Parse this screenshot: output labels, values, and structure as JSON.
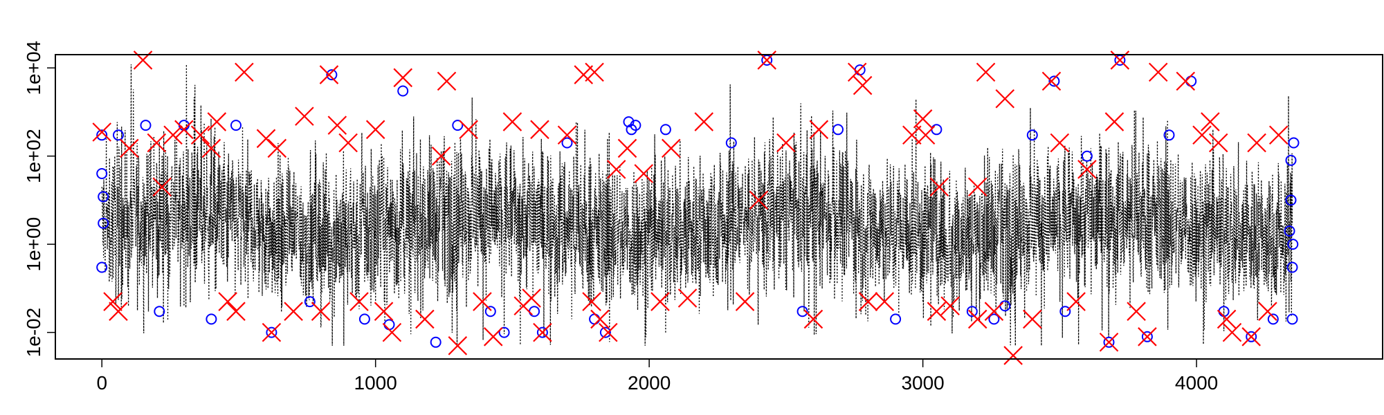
{
  "chart_data": {
    "type": "line",
    "title": "",
    "xlabel": "",
    "ylabel": "",
    "y_scale": "log10",
    "xlim": [
      -170,
      4680
    ],
    "ylim": [
      0.0025,
      20000
    ],
    "x_ticks": [
      0,
      1000,
      2000,
      3000,
      4000
    ],
    "x_tick_labels": [
      "0",
      "1000",
      "2000",
      "3000",
      "4000"
    ],
    "y_ticks": [
      0.01,
      1,
      100,
      10000
    ],
    "y_tick_labels": [
      "1e-02",
      "1e+00",
      "1e+02",
      "1e+04"
    ],
    "grid": false,
    "legend": "none",
    "series": [
      {
        "style": "dotted-line",
        "color": "#000000",
        "x_range": [
          0,
          4350
        ],
        "n_points": 4351,
        "typical_band": [
          0.1,
          50
        ],
        "envelope": [
          0.005,
          12000
        ]
      },
      {
        "style": "circle-markers",
        "color": "#0000ff",
        "points": [
          [
            0,
            300
          ],
          [
            0,
            40
          ],
          [
            5,
            3
          ],
          [
            0,
            0.3
          ],
          [
            5,
            12
          ],
          [
            60,
            300
          ],
          [
            160,
            500
          ],
          [
            210,
            0.03
          ],
          [
            300,
            500
          ],
          [
            400,
            0.02
          ],
          [
            490,
            500
          ],
          [
            620,
            0.01
          ],
          [
            760,
            0.05
          ],
          [
            840,
            7000
          ],
          [
            960,
            0.02
          ],
          [
            1050,
            0.015
          ],
          [
            1100,
            3000
          ],
          [
            1220,
            0.006
          ],
          [
            1300,
            500
          ],
          [
            1420,
            0.03
          ],
          [
            1470,
            0.01
          ],
          [
            1580,
            0.03
          ],
          [
            1610,
            0.01
          ],
          [
            1700,
            200
          ],
          [
            1800,
            0.02
          ],
          [
            1840,
            0.01
          ],
          [
            1925,
            600
          ],
          [
            1935,
            400
          ],
          [
            1950,
            500
          ],
          [
            2060,
            400
          ],
          [
            2300,
            200
          ],
          [
            2430,
            15000
          ],
          [
            2560,
            0.03
          ],
          [
            2690,
            400
          ],
          [
            2770,
            9000
          ],
          [
            2900,
            0.02
          ],
          [
            3050,
            400
          ],
          [
            3180,
            0.03
          ],
          [
            3260,
            0.02
          ],
          [
            3300,
            0.04
          ],
          [
            3400,
            300
          ],
          [
            3480,
            5000
          ],
          [
            3520,
            0.03
          ],
          [
            3600,
            100
          ],
          [
            3680,
            0.006
          ],
          [
            3720,
            15000
          ],
          [
            3820,
            0.008
          ],
          [
            3900,
            300
          ],
          [
            3980,
            5000
          ],
          [
            4100,
            0.03
          ],
          [
            4200,
            0.008
          ],
          [
            4280,
            0.02
          ],
          [
            4340,
            2
          ],
          [
            4345,
            10
          ],
          [
            4350,
            0.02
          ],
          [
            4350,
            0.3
          ],
          [
            4355,
            200
          ],
          [
            4345,
            80
          ],
          [
            4352,
            1
          ]
        ]
      },
      {
        "style": "x-markers",
        "color": "#ff0000",
        "points": [
          [
            0,
            350
          ],
          [
            40,
            0.05
          ],
          [
            60,
            0.03
          ],
          [
            100,
            150
          ],
          [
            150,
            15000
          ],
          [
            200,
            200
          ],
          [
            220,
            20
          ],
          [
            260,
            300
          ],
          [
            300,
            400
          ],
          [
            360,
            300
          ],
          [
            400,
            150
          ],
          [
            420,
            600
          ],
          [
            460,
            0.05
          ],
          [
            490,
            0.03
          ],
          [
            520,
            8000
          ],
          [
            600,
            250
          ],
          [
            620,
            0.01
          ],
          [
            640,
            150
          ],
          [
            700,
            0.03
          ],
          [
            740,
            800
          ],
          [
            800,
            0.03
          ],
          [
            830,
            7000
          ],
          [
            860,
            500
          ],
          [
            900,
            200
          ],
          [
            940,
            0.05
          ],
          [
            1000,
            400
          ],
          [
            1030,
            0.03
          ],
          [
            1060,
            0.01
          ],
          [
            1100,
            6000
          ],
          [
            1180,
            0.02
          ],
          [
            1240,
            100
          ],
          [
            1260,
            5000
          ],
          [
            1300,
            0.005
          ],
          [
            1340,
            400
          ],
          [
            1390,
            0.05
          ],
          [
            1430,
            0.008
          ],
          [
            1500,
            600
          ],
          [
            1540,
            0.04
          ],
          [
            1570,
            0.06
          ],
          [
            1600,
            400
          ],
          [
            1610,
            0.01
          ],
          [
            1700,
            300
          ],
          [
            1760,
            7000
          ],
          [
            1790,
            0.05
          ],
          [
            1800,
            8000
          ],
          [
            1820,
            0.02
          ],
          [
            1850,
            0.01
          ],
          [
            1880,
            50
          ],
          [
            1920,
            150
          ],
          [
            1980,
            40
          ],
          [
            2040,
            0.05
          ],
          [
            2080,
            150
          ],
          [
            2140,
            0.06
          ],
          [
            2200,
            600
          ],
          [
            2350,
            0.05
          ],
          [
            2430,
            15000
          ],
          [
            2400,
            10
          ],
          [
            2500,
            200
          ],
          [
            2600,
            0.02
          ],
          [
            2620,
            400
          ],
          [
            2760,
            8000
          ],
          [
            2780,
            4000
          ],
          [
            2800,
            0.05
          ],
          [
            2860,
            0.05
          ],
          [
            2960,
            300
          ],
          [
            3000,
            700
          ],
          [
            3010,
            300
          ],
          [
            3050,
            0.03
          ],
          [
            3060,
            20
          ],
          [
            3100,
            0.04
          ],
          [
            3200,
            0.02
          ],
          [
            3200,
            20
          ],
          [
            3230,
            8000
          ],
          [
            3260,
            0.03
          ],
          [
            3300,
            2000
          ],
          [
            3330,
            0.003
          ],
          [
            3400,
            0.02
          ],
          [
            3470,
            5000
          ],
          [
            3500,
            200
          ],
          [
            3560,
            0.05
          ],
          [
            3600,
            50
          ],
          [
            3680,
            0.006
          ],
          [
            3700,
            600
          ],
          [
            3720,
            15000
          ],
          [
            3780,
            0.03
          ],
          [
            3820,
            0.008
          ],
          [
            3860,
            8000
          ],
          [
            3960,
            5000
          ],
          [
            4020,
            300
          ],
          [
            4050,
            600
          ],
          [
            4080,
            200
          ],
          [
            4110,
            0.02
          ],
          [
            4130,
            0.01
          ],
          [
            4200,
            0.008
          ],
          [
            4220,
            200
          ],
          [
            4260,
            0.03
          ],
          [
            4300,
            300
          ]
        ]
      }
    ]
  }
}
